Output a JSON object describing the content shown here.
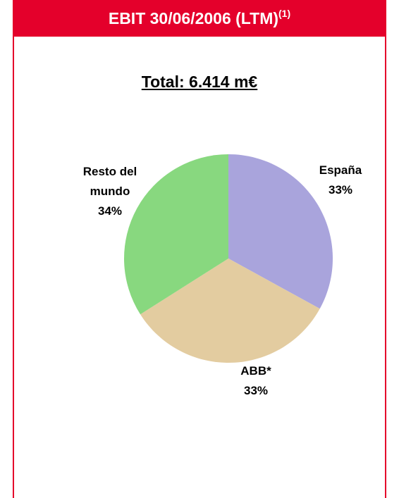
{
  "chart_data": {
    "type": "pie",
    "title": "EBIT 30/06/2006 (LTM)",
    "title_superscript": "(1)",
    "subtitle": "Total: 6.414 m€",
    "categories": [
      "España",
      "ABB*",
      "Resto del mundo"
    ],
    "values": [
      33,
      33,
      34
    ],
    "value_labels": [
      "33%",
      "33%",
      "34%"
    ],
    "colors": [
      "#a9a4dc",
      "#e3cca0",
      "#88d87f"
    ]
  }
}
